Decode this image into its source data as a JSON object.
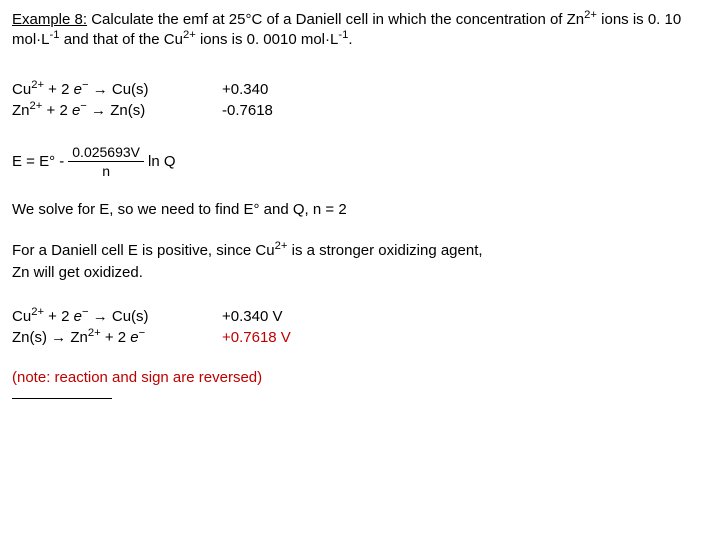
{
  "prompt": {
    "label": "Example 8:",
    "text_part1": " Calculate the emf at 25°C of a Daniell cell in which the concentration of Zn",
    "sup1": "2+",
    "text_part2": " ions is 0. 10 mol·L",
    "sup2": "-1",
    "text_part3": " and that of the Cu",
    "sup3": "2+",
    "text_part4": " ions is 0. 0010 mol·L",
    "sup4": "-1",
    "text_part5": "."
  },
  "rxn1": {
    "species1": "Cu",
    "charge1": "2+",
    "plus": " + 2 ",
    "electron": "e",
    "eminus": "−",
    "arrow": " → Cu(s)",
    "potential": "+0.340"
  },
  "rxn2": {
    "species1": "Zn",
    "charge1": "2+",
    "plus": " + 2 ",
    "electron": "e",
    "eminus": "−",
    "arrow": " → Zn(s)",
    "potential": "-0.7618"
  },
  "nernst": {
    "lhs": "E = E° - ",
    "numerator": "0.025693V",
    "denominator": "n",
    "rhs": " ln Q"
  },
  "solve": "We solve for E, so we need to find E° and Q, n = 2",
  "daniell": {
    "line1_a": "For a Daniell cell E is positive, since Cu",
    "line1_sup": "2+",
    "line1_b": " is a stronger oxidizing agent,",
    "line2": "Zn will get oxidized."
  },
  "rxn3": {
    "species1": "Cu",
    "charge1": "2+",
    "plus": " + 2 ",
    "electron": "e",
    "eminus": "−",
    "arrow": " → Cu(s)",
    "potential": "+0.340 V"
  },
  "rxn4": {
    "left": "Zn(s) → Zn",
    "charge": "2+",
    "plus": " + 2 ",
    "electron": "e",
    "eminus": "−",
    "potential": "+0.7618 V"
  },
  "note": "(note: reaction and sign are reversed)"
}
